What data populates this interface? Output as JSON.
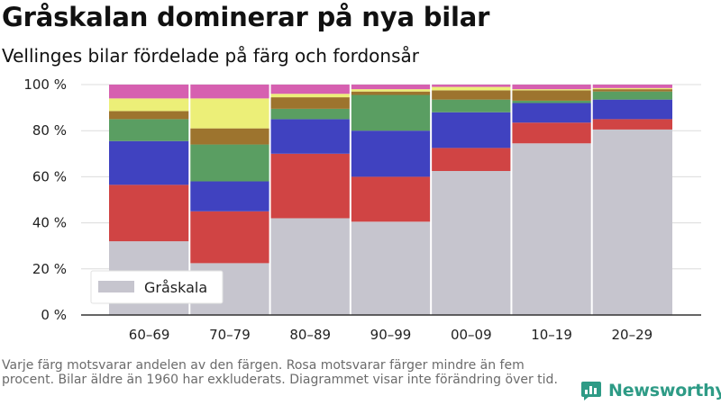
{
  "title": "Gråskalan dominerar på nya bilar",
  "subtitle": "Vellinges bilar fördelade på färg och fordonsår",
  "footnote": "Varje färg motsvarar andelen av den färgen. Rosa motsvarar färger mindre än fem procent. Bilar äldre än 1960 har exkluderats. Diagrammet visar inte förändring över tid.",
  "brand": {
    "name": "Newsworthy",
    "icon": "bar-chart-speech-bubble-icon",
    "color": "#2e9b86"
  },
  "chart_data": {
    "type": "bar",
    "stacked": true,
    "variable_width": true,
    "categories": [
      "60–69",
      "70–79",
      "80–89",
      "90–99",
      "00–09",
      "10–19",
      "20–29"
    ],
    "ylim": [
      0,
      100
    ],
    "yticks": [
      0,
      20,
      40,
      60,
      80,
      100
    ],
    "ytick_labels": [
      "0 %",
      "20 %",
      "40 %",
      "60 %",
      "80 %",
      "100 %"
    ],
    "grid": true,
    "legend": {
      "position": "bottom-left",
      "entries": [
        "Gråskala"
      ]
    },
    "series": [
      {
        "name": "Gråskala",
        "color": "#c6c5ce",
        "values": [
          32,
          22.5,
          42,
          40.5,
          62.5,
          74.5,
          80.5
        ]
      },
      {
        "color": "#d04444",
        "values": [
          24.5,
          22.5,
          28,
          19.5,
          10,
          9,
          4.5
        ]
      },
      {
        "color": "#4042c0",
        "values": [
          19,
          13,
          15,
          20,
          15.5,
          8.5,
          8.5
        ]
      },
      {
        "color": "#5a9e62",
        "values": [
          9.5,
          16,
          4.5,
          15.5,
          5.5,
          1,
          3.5
        ]
      },
      {
        "color": "#9d742e",
        "values": [
          3.5,
          7,
          5,
          1.5,
          4,
          4.5,
          1
        ]
      },
      {
        "color": "#ecef78",
        "values": [
          5.5,
          13,
          1.5,
          1,
          1.5,
          0.5,
          0.5
        ]
      },
      {
        "color": "#d660b0",
        "values": [
          6,
          6,
          4,
          2,
          1,
          2,
          1.5
        ]
      }
    ]
  }
}
